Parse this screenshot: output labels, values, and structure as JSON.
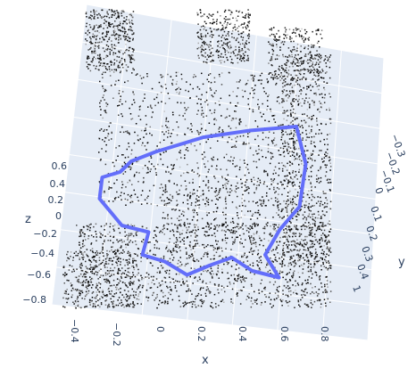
{
  "chart_data": {
    "type": "scatter",
    "subtype": "3d-scatter-with-trajectory",
    "background_color": "#e5ecf6",
    "grid": true,
    "point_color_scale": [
      "#000000",
      "#ffffff"
    ],
    "trajectory_color": "#636efa",
    "axes": {
      "x": {
        "label": "x",
        "ticks": [
          "−0.4",
          "−0.2",
          "0",
          "0.2",
          "0.4",
          "0.6",
          "0.8"
        ]
      },
      "y": {
        "label": "y",
        "ticks": [
          "−0.3",
          "−0.2",
          "−0.1",
          "0",
          "0.1",
          "0.2",
          "0.3",
          "0.4",
          "1"
        ]
      },
      "z": {
        "label": "z",
        "ticks": [
          "0.6",
          "0.4",
          "0.2",
          "0",
          "−0.2",
          "−0.4",
          "−0.6",
          "−0.8"
        ]
      }
    },
    "trajectory": [
      {
        "x": -0.25,
        "y": 0.0,
        "z": 0.5
      },
      {
        "x": -0.15,
        "y": -0.05,
        "z": 0.55
      },
      {
        "x": 0.05,
        "y": -0.15,
        "z": 0.62
      },
      {
        "x": 0.25,
        "y": -0.2,
        "z": 0.65
      },
      {
        "x": 0.45,
        "y": -0.25,
        "z": 0.66
      },
      {
        "x": 0.5,
        "y": -0.2,
        "z": 0.4
      },
      {
        "x": 0.48,
        "y": -0.15,
        "z": 0.1
      },
      {
        "x": 0.4,
        "y": -0.1,
        "z": -0.05
      },
      {
        "x": 0.35,
        "y": 0.0,
        "z": -0.2
      },
      {
        "x": 0.42,
        "y": 0.05,
        "z": -0.35
      },
      {
        "x": 0.3,
        "y": 0.05,
        "z": -0.3
      },
      {
        "x": 0.2,
        "y": 0.0,
        "z": -0.22
      },
      {
        "x": 0.1,
        "y": 0.0,
        "z": -0.28
      },
      {
        "x": 0.0,
        "y": 0.0,
        "z": -0.35
      },
      {
        "x": -0.1,
        "y": 0.0,
        "z": -0.25
      },
      {
        "x": -0.2,
        "y": 0.0,
        "z": -0.2
      },
      {
        "x": -0.18,
        "y": -0.05,
        "z": -0.05
      },
      {
        "x": -0.3,
        "y": -0.05,
        "z": 0.0
      },
      {
        "x": -0.4,
        "y": -0.05,
        "z": 0.2
      },
      {
        "x": -0.38,
        "y": 0.0,
        "z": 0.38
      },
      {
        "x": -0.3,
        "y": 0.0,
        "z": 0.42
      },
      {
        "x": -0.25,
        "y": 0.0,
        "z": 0.5
      }
    ]
  }
}
